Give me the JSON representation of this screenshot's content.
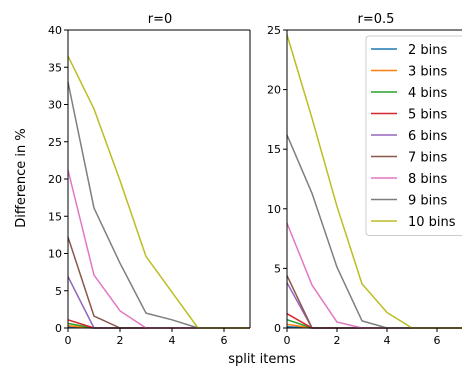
{
  "chart_data": [
    {
      "type": "line",
      "title": "r=0",
      "xlabel": "split items",
      "ylabel": "Difference in %",
      "xlim": [
        0,
        7
      ],
      "ylim": [
        0,
        40
      ],
      "xticks": [
        "0",
        "2",
        "4",
        "6"
      ],
      "yticks": [
        "0",
        "5",
        "10",
        "15",
        "20",
        "25",
        "30",
        "35",
        "40"
      ],
      "x": [
        0,
        1,
        2,
        3,
        4,
        5,
        6,
        7
      ],
      "series": [
        {
          "name": "2 bins",
          "color": "#1f77b4",
          "values": [
            0.1,
            0,
            0,
            0,
            0,
            0,
            0,
            0
          ]
        },
        {
          "name": "3 bins",
          "color": "#ff7f0e",
          "values": [
            0.3,
            0,
            0,
            0,
            0,
            0,
            0,
            0
          ]
        },
        {
          "name": "4 bins",
          "color": "#2ca02c",
          "values": [
            0.6,
            0,
            0,
            0,
            0,
            0,
            0,
            0
          ]
        },
        {
          "name": "5 bins",
          "color": "#d62728",
          "values": [
            1.1,
            0,
            0,
            0,
            0,
            0,
            0,
            0
          ]
        },
        {
          "name": "6 bins",
          "color": "#9467bd",
          "values": [
            6.9,
            0,
            0,
            0,
            0,
            0,
            0,
            0
          ]
        },
        {
          "name": "7 bins",
          "color": "#8c564b",
          "values": [
            12.2,
            1.6,
            0,
            0,
            0,
            0,
            0,
            0
          ]
        },
        {
          "name": "8 bins",
          "color": "#e377c2",
          "values": [
            21.2,
            7.1,
            2.3,
            0,
            0,
            0,
            0,
            0
          ]
        },
        {
          "name": "9 bins",
          "color": "#7f7f7f",
          "values": [
            33,
            16.1,
            8.7,
            2,
            1.1,
            0,
            0,
            0
          ]
        },
        {
          "name": "10 bins",
          "color": "#bcbd22",
          "values": [
            36.5,
            29.4,
            19.8,
            9.6,
            4.8,
            0,
            0,
            0
          ]
        }
      ]
    },
    {
      "type": "line",
      "title": "r=0.5",
      "xlabel": "split items",
      "ylabel": "",
      "xlim": [
        0,
        7
      ],
      "ylim": [
        0,
        25
      ],
      "xticks": [
        "0",
        "2",
        "4",
        "6"
      ],
      "yticks": [
        "0",
        "5",
        "10",
        "15",
        "20",
        "25"
      ],
      "legend": "top-right",
      "x": [
        0,
        1,
        2,
        3,
        4,
        5,
        6,
        7
      ],
      "series": [
        {
          "name": "2 bins",
          "color": "#1f77b4",
          "values": [
            0.1,
            0,
            0,
            0,
            0,
            0,
            0,
            0
          ]
        },
        {
          "name": "3 bins",
          "color": "#ff7f0e",
          "values": [
            0.3,
            0,
            0,
            0,
            0,
            0,
            0,
            0
          ]
        },
        {
          "name": "4 bins",
          "color": "#2ca02c",
          "values": [
            0.7,
            0,
            0,
            0,
            0,
            0,
            0,
            0
          ]
        },
        {
          "name": "5 bins",
          "color": "#d62728",
          "values": [
            1.2,
            0,
            0,
            0,
            0,
            0,
            0,
            0
          ]
        },
        {
          "name": "6 bins",
          "color": "#9467bd",
          "values": [
            3.8,
            0,
            0,
            0,
            0,
            0,
            0,
            0
          ]
        },
        {
          "name": "7 bins",
          "color": "#8c564b",
          "values": [
            4.4,
            0,
            0,
            0,
            0,
            0,
            0,
            0
          ]
        },
        {
          "name": "8 bins",
          "color": "#e377c2",
          "values": [
            8.8,
            3.6,
            0.5,
            0,
            0,
            0,
            0,
            0
          ]
        },
        {
          "name": "9 bins",
          "color": "#7f7f7f",
          "values": [
            16.2,
            11.3,
            5.1,
            0.6,
            0,
            0,
            0,
            0
          ]
        },
        {
          "name": "10 bins",
          "color": "#bcbd22",
          "values": [
            24.6,
            17.6,
            10.2,
            3.7,
            1.3,
            0,
            0,
            0
          ]
        }
      ]
    }
  ]
}
